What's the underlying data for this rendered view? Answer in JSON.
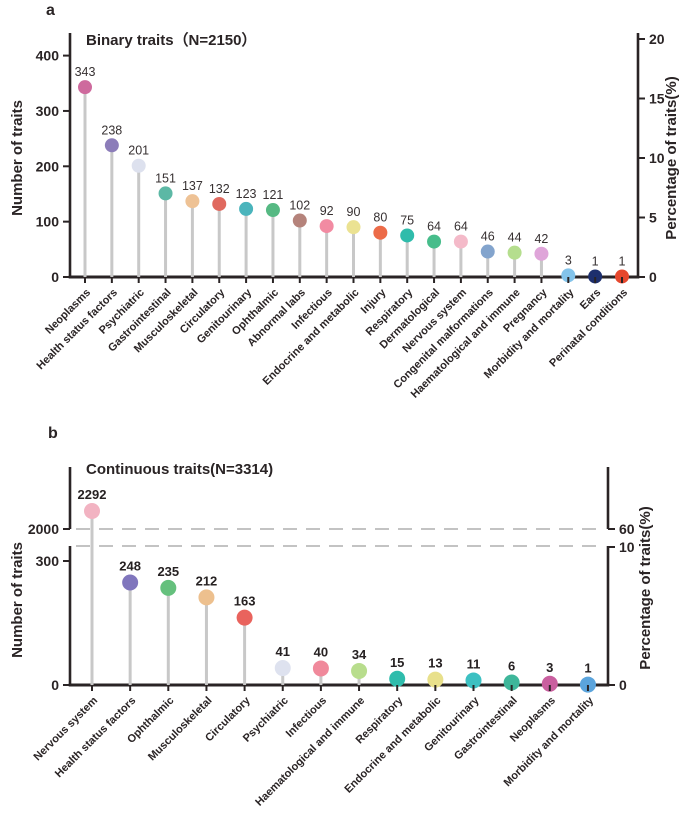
{
  "figure": {
    "bg": "#ffffff",
    "axis_color": "#2a2425",
    "stem_color": "#c8c8c8",
    "dash_color": "#c3c3c3"
  },
  "chart_data": [
    {
      "type": "lollipop",
      "panel_label": "a",
      "title": "Binary traits（N=2150）",
      "ylabel": "Number of traits",
      "ylabel_right": "Percentage of traits(%)",
      "yticks_left": [
        0,
        100,
        200,
        300,
        400
      ],
      "yticks_right": [
        0,
        5,
        10,
        15,
        20
      ],
      "ylim_left": [
        0,
        440
      ],
      "ylim_right": [
        0,
        22
      ],
      "grid": false,
      "categories": [
        "Neoplasms",
        "Health status factors",
        "Psychiatric",
        "Gastrointestinal",
        "Musculoskeletal",
        "Circulatory",
        "Genitourinary",
        "Ophthalmic",
        "Abnormal labs",
        "Infectious",
        "Endocrine and metabolic",
        "Injury",
        "Respiratory",
        "Dermatological",
        "Nervous system",
        "Congenital malformations",
        "Haematological and immune",
        "Pregnancy",
        "Morbidity and mortality",
        "Ears",
        "Perinatal conditions"
      ],
      "values": [
        343,
        238,
        201,
        151,
        137,
        132,
        123,
        121,
        102,
        92,
        90,
        80,
        75,
        64,
        64,
        46,
        44,
        42,
        3,
        1,
        1
      ],
      "colors": [
        "#ce6a9d",
        "#8c7db9",
        "#dde1ee",
        "#5cb8a5",
        "#eec295",
        "#e0695f",
        "#4ab4bc",
        "#56b983",
        "#b5837b",
        "#f28ba2",
        "#ebe292",
        "#ec6b48",
        "#2fbcab",
        "#47bd8b",
        "#f4bac9",
        "#83a4cd",
        "#b5de8e",
        "#dfa5d9",
        "#83c3ea",
        "#1d2f6d",
        "#e6482e"
      ]
    },
    {
      "type": "lollipop-broken-axis",
      "panel_label": "b",
      "title": "Continuous traits(N=3314)",
      "ylabel": "Number of traits",
      "ylabel_right": "Percentage of traits(%)",
      "axis_break": {
        "lower_top_value": 300,
        "upper_tick_value": 2000
      },
      "yticks_left": [
        2000,
        300,
        0
      ],
      "yticks_right": [
        60,
        10,
        0
      ],
      "grid": false,
      "categories": [
        "Nervous system",
        "Health status factors",
        "Ophthalmic",
        "Musculoskeletal",
        "Circulatory",
        "Psychiatric",
        "Infectious",
        "Haematological and immune",
        "Respiratory",
        "Endocrine and metabolic",
        "Genitourinary",
        "Gastrointestinal",
        "Neoplasms",
        "Morbidity and mortality"
      ],
      "values": [
        2292,
        248,
        235,
        212,
        163,
        41,
        40,
        34,
        15,
        13,
        11,
        6,
        3,
        1
      ],
      "colors": [
        "#f2b3c2",
        "#8076bd",
        "#65c07d",
        "#edc08e",
        "#e9635d",
        "#dee2ef",
        "#f0899b",
        "#b8dd8d",
        "#2fbcac",
        "#e8e08b",
        "#3cc0c2",
        "#3eb69a",
        "#c95f9f",
        "#5ba4dc"
      ]
    }
  ]
}
